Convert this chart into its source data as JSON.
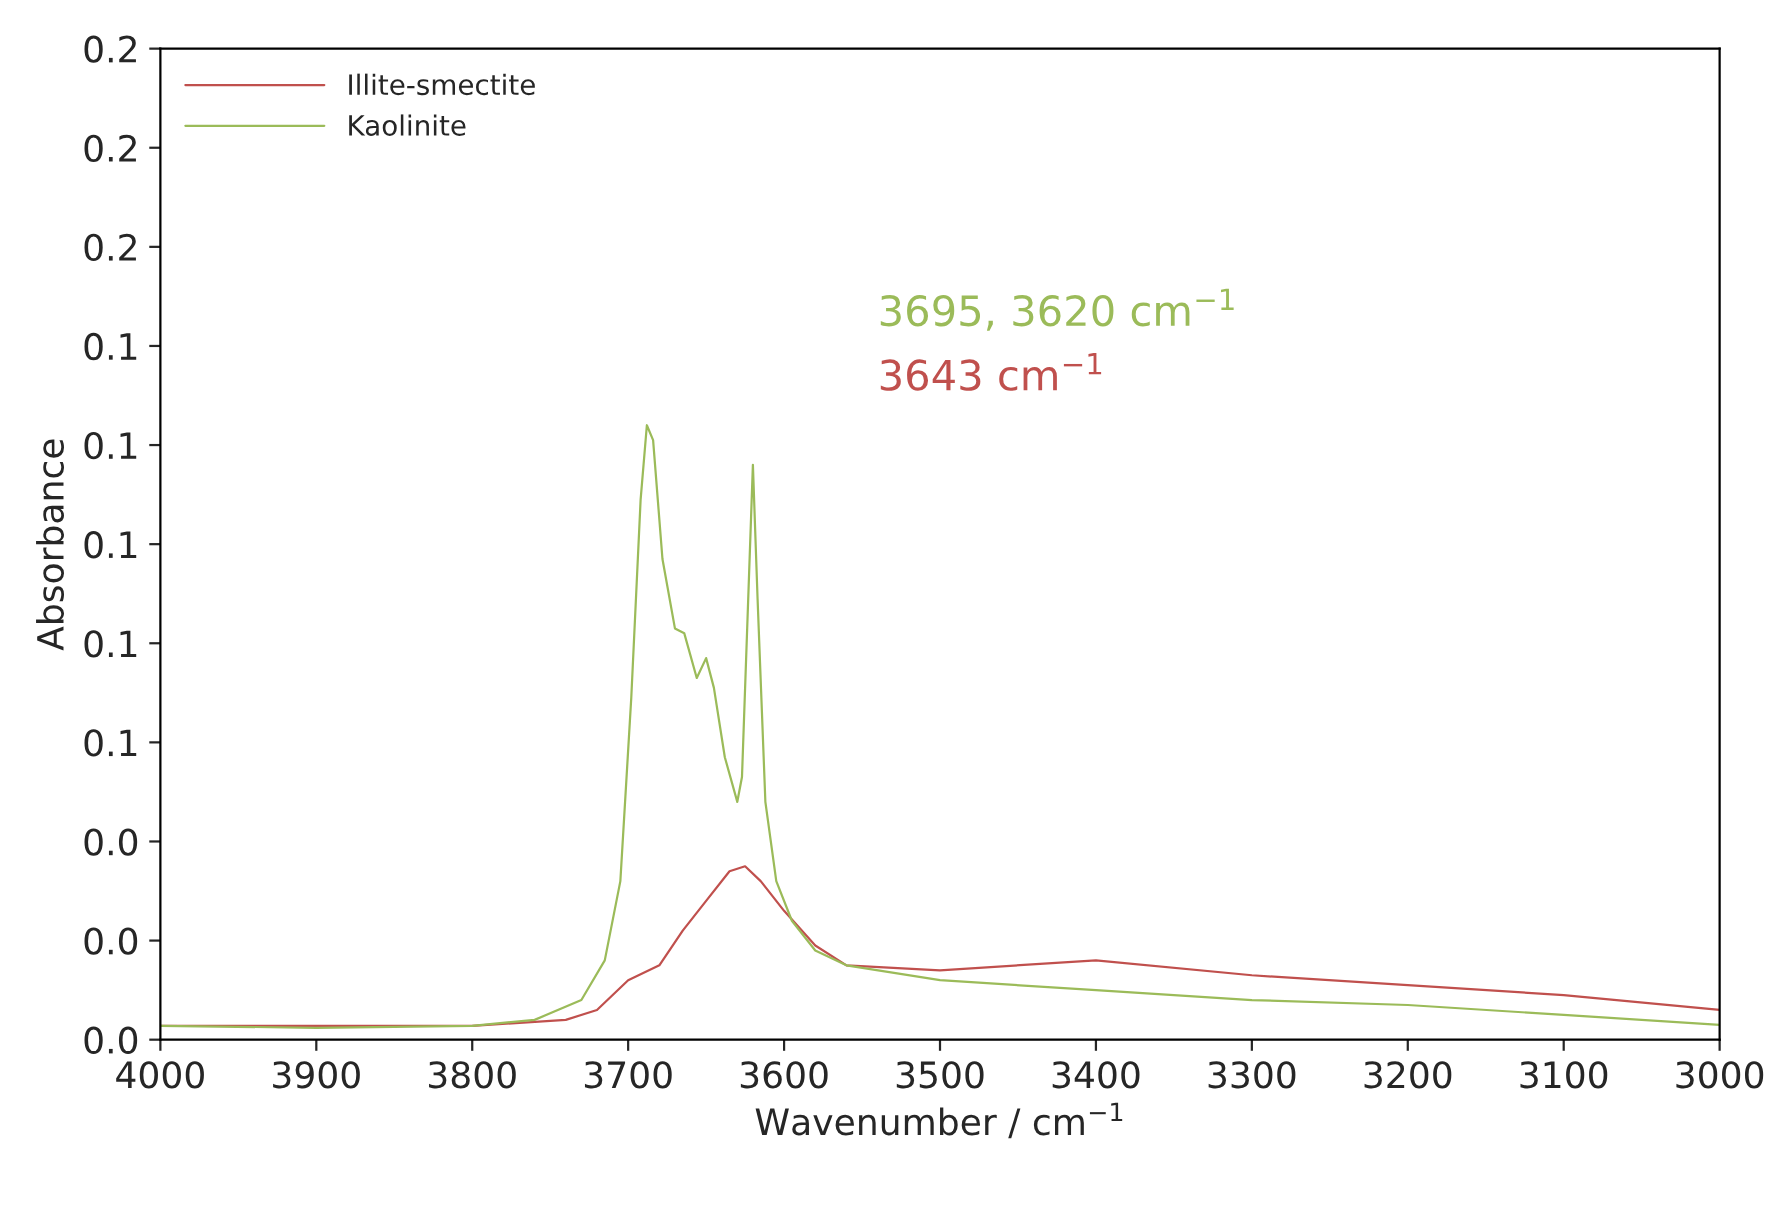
{
  "chart_data": {
    "type": "line",
    "xlabel": "Wavenumber / cm$^{−1}$",
    "ylabel": "Absorbance",
    "xlim": [
      4000,
      3000
    ],
    "xticks": [
      4000,
      3900,
      3800,
      3700,
      3600,
      3500,
      3400,
      3300,
      3200,
      3100,
      3000
    ],
    "ylim": [
      0,
      0.2
    ],
    "yticks": [
      {
        "value": 0,
        "label": "0.0"
      },
      {
        "value": 0.02,
        "label": "0.0"
      },
      {
        "value": 0.04,
        "label": "0.0"
      },
      {
        "value": 0.06,
        "label": "0.1"
      },
      {
        "value": 0.08,
        "label": "0.1"
      },
      {
        "value": 0.1,
        "label": "0.1"
      },
      {
        "value": 0.12,
        "label": "0.1"
      },
      {
        "value": 0.14,
        "label": "0.1"
      },
      {
        "value": 0.16,
        "label": "0.2"
      },
      {
        "value": 0.18,
        "label": "0.2"
      },
      {
        "value": 0.2,
        "label": "0.2"
      }
    ],
    "grid": false,
    "legend": "top left",
    "marker": "none",
    "line_style": "solid",
    "annotations": [
      "3695, 3620 cm$^{−1}$",
      "3643 cm$^{−1}$"
    ],
    "series": [
      {
        "name": "Illite-smectite",
        "color": "#c0504d",
        "x": [
          4000,
          3800,
          3740,
          3720,
          3700,
          3680,
          3665,
          3650,
          3635,
          3625,
          3615,
          3600,
          3580,
          3560,
          3500,
          3400,
          3300,
          3200,
          3100,
          3000
        ],
        "values": [
          0.0028,
          0.0028,
          0.004,
          0.006,
          0.012,
          0.015,
          0.022,
          0.028,
          0.034,
          0.035,
          0.032,
          0.026,
          0.019,
          0.015,
          0.014,
          0.016,
          0.013,
          0.011,
          0.009,
          0.006
        ]
      },
      {
        "name": "Kaolinite",
        "color": "#9bbb59",
        "x": [
          4000,
          3900,
          3800,
          3760,
          3730,
          3715,
          3705,
          3698,
          3692,
          3688,
          3684,
          3678,
          3670,
          3664,
          3656,
          3650,
          3645,
          3638,
          3630,
          3627,
          3623,
          3620,
          3617,
          3612,
          3605,
          3595,
          3580,
          3560,
          3500,
          3400,
          3300,
          3200,
          3100,
          3000
        ],
        "values": [
          0.0028,
          0.0024,
          0.0028,
          0.004,
          0.008,
          0.016,
          0.032,
          0.069,
          0.109,
          0.124,
          0.121,
          0.097,
          0.083,
          0.082,
          0.073,
          0.077,
          0.071,
          0.057,
          0.048,
          0.053,
          0.089,
          0.116,
          0.089,
          0.048,
          0.032,
          0.024,
          0.018,
          0.015,
          0.012,
          0.01,
          0.008,
          0.007,
          0.005,
          0.003
        ]
      }
    ]
  }
}
